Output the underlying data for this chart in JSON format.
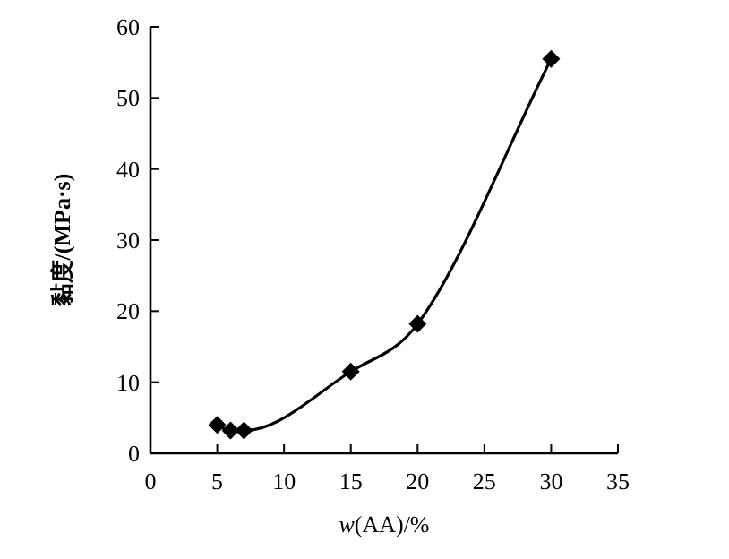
{
  "chart_data": {
    "type": "line",
    "xlabel": "*w*(AA)/%",
    "ylabel": "黏度/(MPa·s)",
    "x": [
      5,
      6,
      7,
      15,
      20,
      30
    ],
    "values": [
      4,
      3.2,
      3.2,
      11.5,
      18.2,
      55.5
    ],
    "color": "#000000",
    "marker": "diamond",
    "xlim": [
      0,
      35
    ],
    "xticks": [
      0,
      5,
      10,
      15,
      20,
      25,
      30,
      35
    ],
    "ylim": [
      0,
      60
    ],
    "yticks": [
      0,
      10,
      20,
      30,
      40,
      50,
      60
    ]
  }
}
